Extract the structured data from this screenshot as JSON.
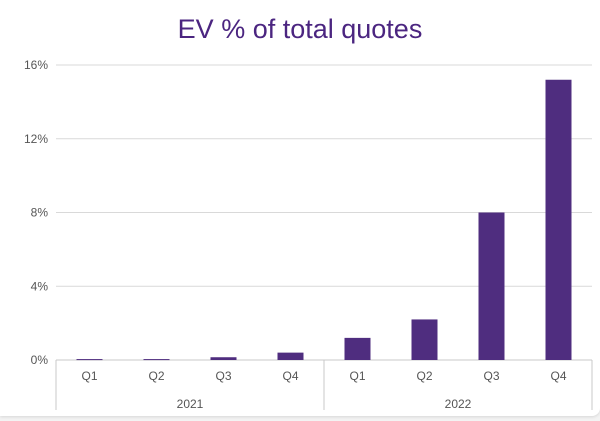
{
  "chart_data": {
    "type": "bar",
    "title": "EV % of total quotes",
    "xlabel": "",
    "ylabel": "",
    "ylim": [
      0,
      16
    ],
    "yticks": [
      "0%",
      "4%",
      "8%",
      "12%",
      "16%"
    ],
    "ytick_values": [
      0,
      4,
      8,
      12,
      16
    ],
    "categories": [
      "Q1",
      "Q2",
      "Q3",
      "Q4",
      "Q1",
      "Q2",
      "Q3",
      "Q4"
    ],
    "groups": [
      {
        "label": "2021",
        "count": 4
      },
      {
        "label": "2022",
        "count": 4
      }
    ],
    "values": [
      0.05,
      0.05,
      0.15,
      0.4,
      1.2,
      2.2,
      8.0,
      15.2
    ],
    "bar_color": "#4f2d7f",
    "grid": true
  }
}
